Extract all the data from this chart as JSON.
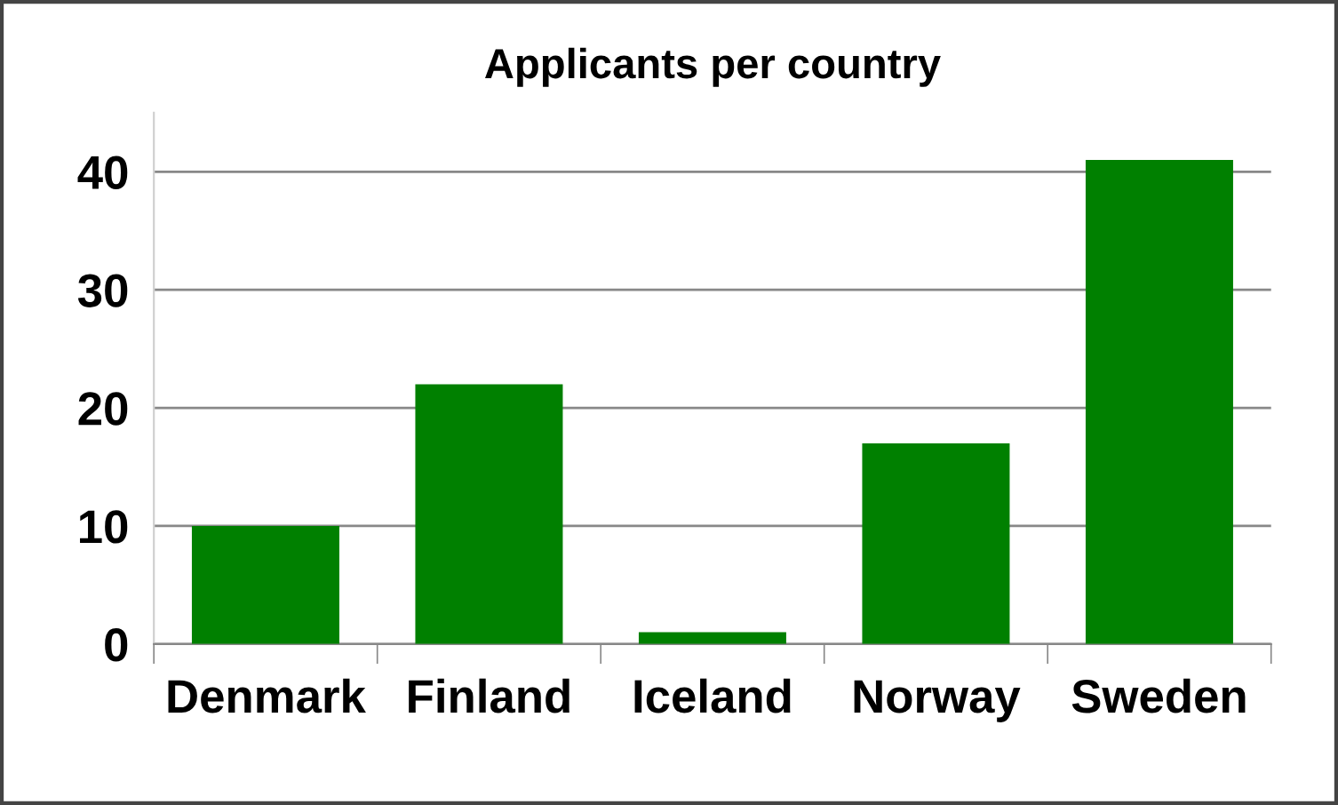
{
  "chart_data": {
    "type": "bar",
    "title": "Applicants per country",
    "categories": [
      "Denmark",
      "Finland",
      "Iceland",
      "Norway",
      "Sweden"
    ],
    "values": [
      10,
      22,
      1,
      17,
      41
    ],
    "color": "#008000",
    "ylim": [
      0,
      45
    ],
    "yticks": [
      0,
      10,
      20,
      30,
      40
    ],
    "grid": "y"
  }
}
